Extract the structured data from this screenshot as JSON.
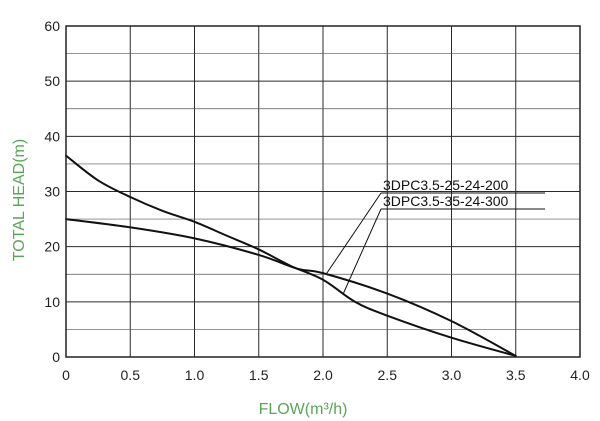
{
  "chart_data": {
    "type": "line",
    "xlabel": "FLOW(m³/h)",
    "ylabel": "TOTAL HEAD(m)",
    "xlim": [
      0,
      4.0
    ],
    "ylim": [
      0,
      60
    ],
    "x_ticks": [
      "0",
      "0.5",
      "1.0",
      "1.5",
      "2.0",
      "2.5",
      "3.0",
      "3.5",
      "4.0"
    ],
    "y_ticks": [
      "0",
      "10",
      "20",
      "30",
      "40",
      "50",
      "60"
    ],
    "grid": true,
    "label_color": "#5aa55a",
    "series": [
      {
        "name": "3DPC3.5-25-24-200",
        "x": [
          0,
          0.5,
          1.0,
          1.5,
          1.8,
          2.0,
          2.5,
          3.0,
          3.5
        ],
        "y": [
          25,
          23.5,
          21.5,
          18.5,
          16,
          15.2,
          11.5,
          6.5,
          0.2
        ]
      },
      {
        "name": "3DPC3.5-35-24-300",
        "x": [
          0,
          0.25,
          0.5,
          0.75,
          1.0,
          1.25,
          1.5,
          1.75,
          2.0,
          2.25,
          2.5,
          3.0,
          3.5
        ],
        "y": [
          36.5,
          32,
          29,
          26.5,
          24.5,
          22,
          19.5,
          16.5,
          14,
          10,
          7.5,
          3.5,
          0.2
        ]
      }
    ]
  }
}
